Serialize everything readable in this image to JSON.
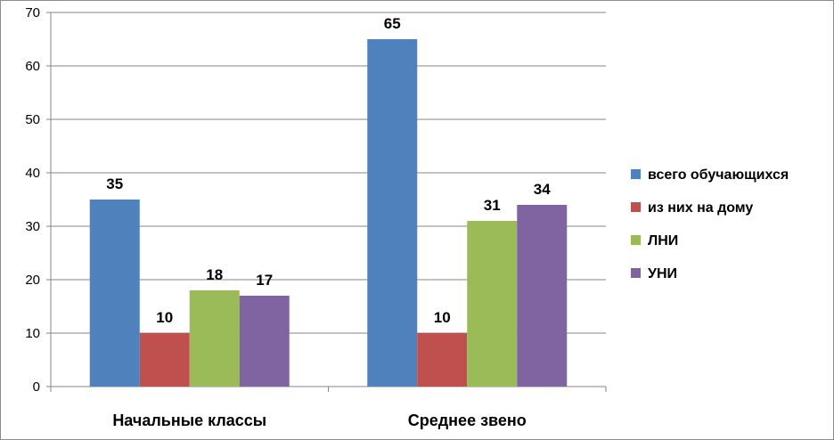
{
  "chart_data": {
    "type": "bar",
    "title": "",
    "xlabel": "",
    "ylabel": "",
    "categories": [
      "Начальные классы",
      "Среднее звено"
    ],
    "series": [
      {
        "name": "всего обучающихся",
        "values": [
          35,
          65
        ],
        "color": "#4f81bd"
      },
      {
        "name": "из них на дому",
        "values": [
          10,
          10
        ],
        "color": "#c0504d"
      },
      {
        "name": "ЛНИ",
        "values": [
          18,
          31
        ],
        "color": "#9bbb59"
      },
      {
        "name": "УНИ",
        "values": [
          17,
          34
        ],
        "color": "#8064a2"
      }
    ],
    "ylim": [
      0,
      70
    ],
    "yticks": [
      0,
      10,
      20,
      30,
      40,
      50,
      60,
      70
    ],
    "grid": true,
    "legend": "right",
    "data_labels": true
  }
}
